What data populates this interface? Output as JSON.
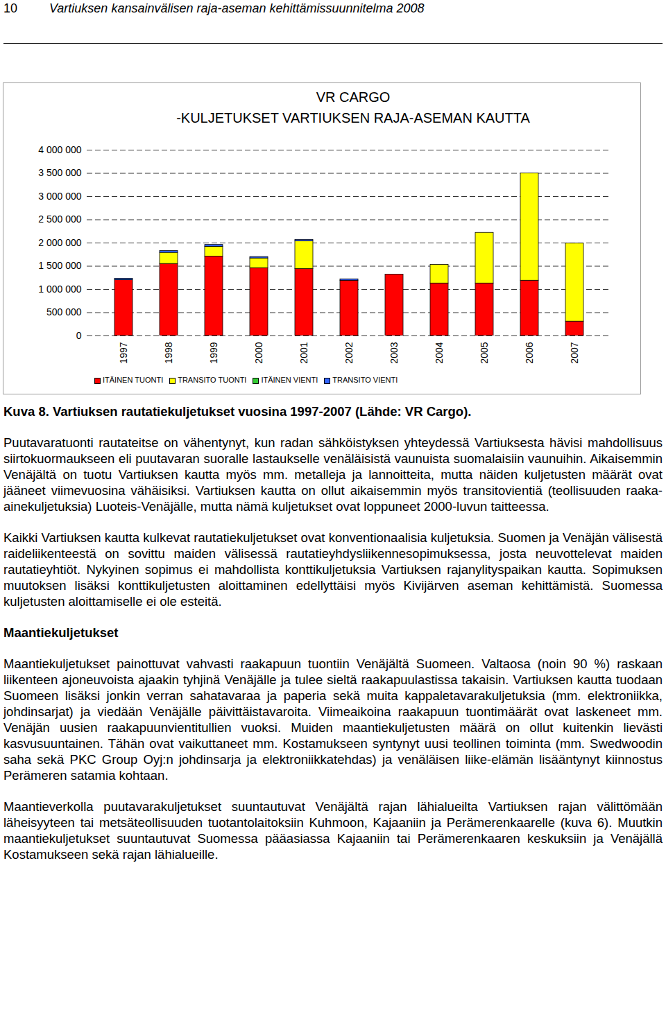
{
  "header": {
    "page_number": "10",
    "title": "Vartiuksen kansainvälisen raja-aseman kehittämissuunnitelma 2008"
  },
  "chart_data": {
    "type": "bar",
    "stacked": true,
    "title": [
      "VR CARGO",
      "-KULJETUKSET VARTIUKSEN RAJA-ASEMAN KAUTTA"
    ],
    "categories": [
      "1997",
      "1998",
      "1999",
      "2000",
      "2001",
      "2002",
      "2003",
      "2004",
      "2005",
      "2006",
      "2007"
    ],
    "series": [
      {
        "name": "ITÄINEN TUONTI",
        "color": "#ff0000",
        "values": [
          1200000,
          1550000,
          1710000,
          1460000,
          1440000,
          1190000,
          1320000,
          1130000,
          1130000,
          1190000,
          310000
        ]
      },
      {
        "name": "TRANSITO TUONTI",
        "color": "#ffff00",
        "values": [
          0,
          240000,
          210000,
          210000,
          600000,
          0,
          0,
          400000,
          1090000,
          2310000,
          1680000
        ]
      },
      {
        "name": "ITÄINEN VIENTI",
        "color": "#33cc33",
        "values": [
          0,
          0,
          0,
          0,
          0,
          0,
          0,
          0,
          0,
          0,
          0
        ]
      },
      {
        "name": "TRANSITO VIENTI",
        "color": "#3366ff",
        "values": [
          30000,
          40000,
          40000,
          30000,
          30000,
          30000,
          0,
          0,
          0,
          0,
          0
        ]
      }
    ],
    "ylim": [
      0,
      4000000
    ],
    "yticks": [
      {
        "value": 0,
        "label": "0"
      },
      {
        "value": 500000,
        "label": "500 000"
      },
      {
        "value": 1000000,
        "label": "1 000 000"
      },
      {
        "value": 1500000,
        "label": "1 500 000"
      },
      {
        "value": 2000000,
        "label": "2 000 000"
      },
      {
        "value": 2500000,
        "label": "2 500 000"
      },
      {
        "value": 3000000,
        "label": "3 000 000"
      },
      {
        "value": 3500000,
        "label": "3 500 000"
      },
      {
        "value": 4000000,
        "label": "4 000 000"
      }
    ],
    "grid": true,
    "legend": "bottom"
  },
  "caption": "Kuva 8. Vartiuksen rautatiekuljetukset vuosina 1997-2007 (Lähde: VR Cargo).",
  "body": [
    {
      "paragraph": "Puutavaratuonti rautateitse on vähentynyt, kun radan sähköistyksen yhteydessä Vartiuksesta hävisi mahdollisuus siirtokuormaukseen eli puutavaran suoralle lastaukselle venäläisistä vaunuista suomalaisiin vaunuihin. Aikaisemmin Venäjältä on tuotu Vartiuksen kautta myös mm. metalleja ja lannoitteita, mutta näiden kuljetusten määrät ovat jääneet viimevuosina vähäisiksi. Vartiuksen kautta on ollut aikaisemmin myös transitovientiä (teollisuuden raaka-ainekuljetuksia) Luoteis-Venäjälle, mutta nämä kuljetukset ovat loppuneet 2000-luvun taitteessa."
    },
    {
      "paragraph": "Kaikki Vartiuksen kautta kulkevat rautatiekuljetukset ovat konventionaalisia kuljetuksia. Suomen ja Venäjän välisestä raideliikenteestä on sovittu maiden välisessä rautatieyhdysliikennesopimuksessa, josta neuvottelevat maiden rautatieyhtiöt. Nykyinen sopimus ei mahdollista konttikuljetuksia Vartiuksen rajanylityspaikan kautta. Sopimuksen muutoksen lisäksi konttikuljetusten aloittaminen edellyttäisi myös Kivijärven aseman kehittämistä. Suomessa kuljetusten aloittamiselle ei ole esteitä."
    },
    {
      "heading": "Maantiekuljetukset"
    },
    {
      "paragraph": "Maantiekuljetukset painottuvat vahvasti raakapuun tuontiin Venäjältä Suomeen. Valtaosa (noin 90 %) raskaan liikenteen ajoneuvoista ajaakin tyhjinä Venäjälle ja tulee sieltä raakapuulastissa takaisin. Vartiuksen kautta tuodaan Suomeen lisäksi jonkin verran sahatavaraa ja paperia sekä muita kappaletavarakuljetuksia (mm. elektroniikka, johdinsarjat) ja viedään Venäjälle päivittäistavaroita. Viimeaikoina raakapuun tuontimäärät ovat laskeneet mm. Venäjän uusien raakapuunvientitullien vuoksi. Muiden maantiekuljetusten määrä on ollut kuitenkin lievästi kasvusuuntainen. Tähän ovat vaikuttaneet mm. Kostamukseen syntynyt uusi teollinen toiminta (mm. Swedwoodin saha sekä PKC Group Oyj:n johdinsarja ja elektroniikkatehdas) ja venäläisen liike-elämän lisääntynyt kiinnostus Perämeren satamia kohtaan."
    },
    {
      "paragraph": "Maantieverkolla puutavarakuljetukset suuntautuvat Venäjältä rajan lähialueilta Vartiuksen rajan välittömään läheisyyteen tai metsäteollisuuden tuotantolaitoksiin Kuhmoon, Kajaaniin ja Perämerenkaarelle (kuva 6). Muutkin maantiekuljetukset suuntautuvat Suomessa pääasiassa Kajaaniin tai Perämerenkaaren keskuksiin ja Venäjällä Kostamukseen sekä rajan lähialueille."
    }
  ]
}
